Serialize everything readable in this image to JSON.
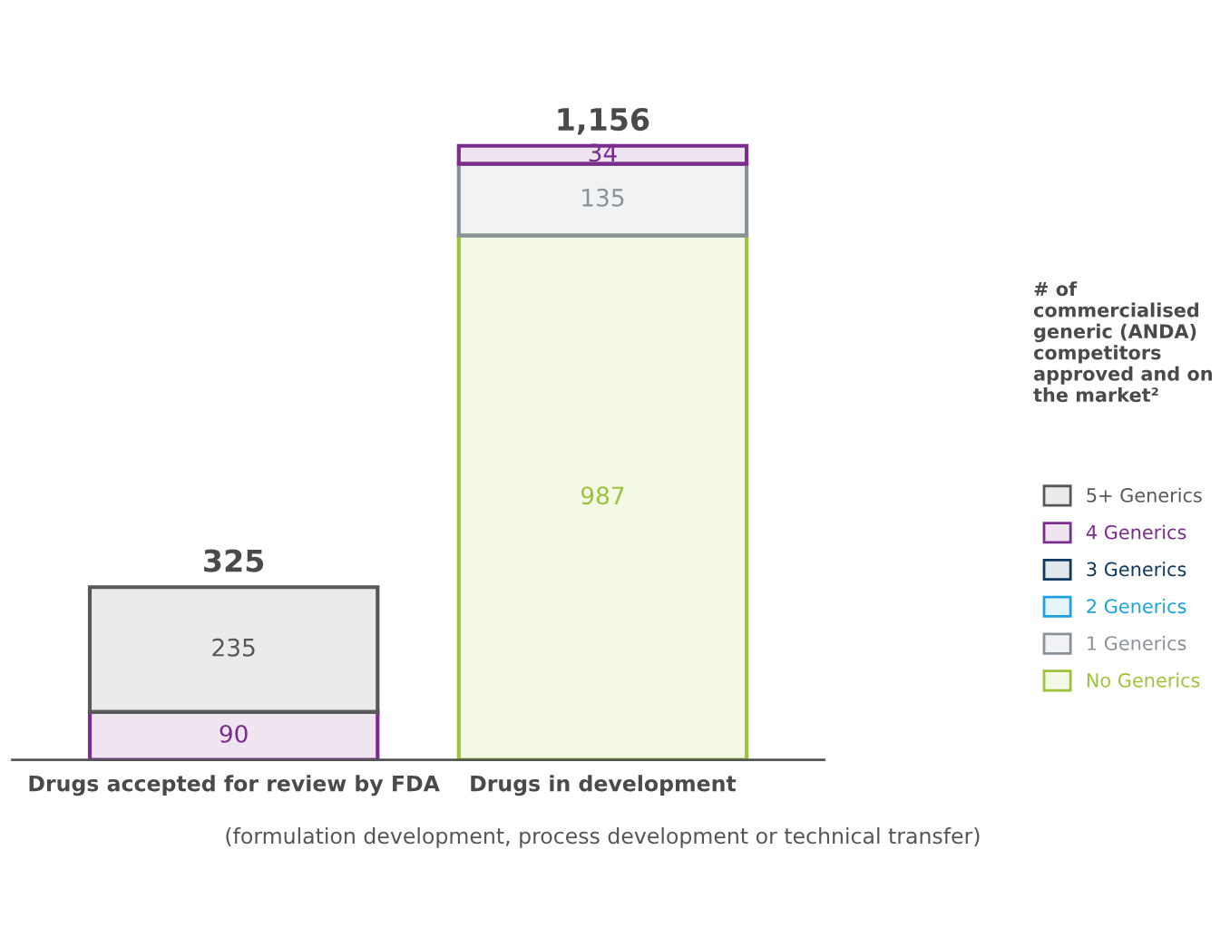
{
  "chart_data": {
    "type": "bar",
    "stacked": true,
    "categories": [
      "Drugs accepted for review by FDA",
      "Drugs in development"
    ],
    "series": [
      {
        "name": "No Generics",
        "color": "#9dc33b",
        "values": [
          null,
          987
        ]
      },
      {
        "name": "1 Generics",
        "color": "#8a9299",
        "values": [
          null,
          135
        ]
      },
      {
        "name": "2 Generics",
        "color": "#1aa3e0",
        "values": [
          null,
          null
        ]
      },
      {
        "name": "3 Generics",
        "color": "#0f3a5f",
        "values": [
          null,
          null
        ]
      },
      {
        "name": "4 Generics",
        "color": "#7b2d8e",
        "values": [
          90,
          34
        ]
      },
      {
        "name": "5+ Generics",
        "color": "#58585a",
        "values": [
          235,
          null
        ]
      }
    ],
    "data_labels": true,
    "totals": [
      "325",
      "1,156"
    ],
    "legend": "right",
    "legend_title": "# of commercialised generic (ANDA) competitors approved and on the market²",
    "annotations": [
      "(formulation development, process development or technical transfer)"
    ]
  }
}
